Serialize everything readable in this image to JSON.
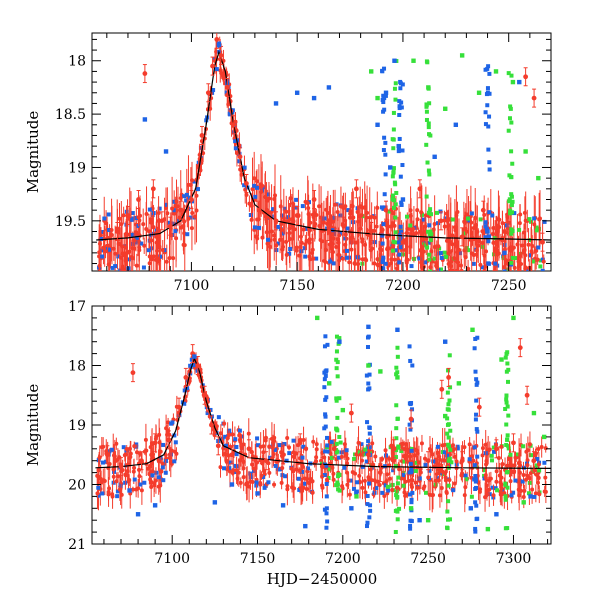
{
  "chart_data": [
    {
      "type": "scatter",
      "title": "",
      "xlabel": "",
      "ylabel": "Magnitude",
      "xlim": [
        7053,
        7270
      ],
      "ylim": [
        19.97,
        17.74
      ],
      "y_inverted": true,
      "x_ticks": [
        7100,
        7150,
        7200,
        7250
      ],
      "x_tick_labels": [
        "7100",
        "7150",
        "7200",
        "7250"
      ],
      "y_ticks": [
        18,
        18.5,
        19,
        19.5
      ],
      "y_tick_labels": [
        "18",
        "18.5",
        "19",
        "19.5"
      ],
      "model_curve": {
        "name": "fit",
        "color": "#000000",
        "points": [
          [
            7055,
            19.68
          ],
          [
            7070,
            19.66
          ],
          [
            7085,
            19.62
          ],
          [
            7095,
            19.5
          ],
          [
            7102,
            19.2
          ],
          [
            7107,
            18.6
          ],
          [
            7111,
            18.05
          ],
          [
            7113,
            17.92
          ],
          [
            7116,
            18.1
          ],
          [
            7120,
            18.6
          ],
          [
            7125,
            19.1
          ],
          [
            7130,
            19.35
          ],
          [
            7140,
            19.5
          ],
          [
            7160,
            19.58
          ],
          [
            7190,
            19.63
          ],
          [
            7220,
            19.66
          ],
          [
            7250,
            19.67
          ],
          [
            7270,
            19.68
          ]
        ]
      },
      "series": [
        {
          "name": "red",
          "color": "#f43c2c",
          "errorbars": true,
          "points": [
            [
              7065,
              19.6
            ],
            [
              7070,
              19.45
            ],
            [
              7075,
              19.3
            ],
            [
              7078,
              18.12
            ],
            [
              7082,
              19.2
            ],
            [
              7086,
              19.5
            ],
            [
              7090,
              19.55
            ],
            [
              7095,
              19.4
            ],
            [
              7100,
              19.3
            ],
            [
              7105,
              18.7
            ],
            [
              7108,
              18.3
            ],
            [
              7110,
              18.05
            ],
            [
              7112,
              17.8
            ],
            [
              7114,
              17.95
            ],
            [
              7117,
              18.25
            ],
            [
              7120,
              18.6
            ],
            [
              7123,
              18.9
            ],
            [
              7126,
              19.15
            ],
            [
              7132,
              19.4
            ],
            [
              7140,
              19.5
            ],
            [
              7150,
              19.45
            ],
            [
              7158,
              19.3
            ],
            [
              7165,
              19.6
            ],
            [
              7172,
              19.55
            ],
            [
              7178,
              19.2
            ],
            [
              7185,
              19.6
            ],
            [
              7192,
              19.4
            ],
            [
              7200,
              19.7
            ],
            [
              7208,
              19.2
            ],
            [
              7218,
              19.5
            ],
            [
              7228,
              19.65
            ],
            [
              7238,
              19.4
            ],
            [
              7248,
              19.6
            ],
            [
              7258,
              18.15
            ],
            [
              7262,
              18.35
            ],
            [
              7266,
              19.7
            ]
          ]
        },
        {
          "name": "blue",
          "color": "#1e64e6",
          "errorbars": false,
          "points": [
            [
              7078,
              18.55
            ],
            [
              7088,
              18.85
            ],
            [
              7113,
              17.85
            ],
            [
              7140,
              18.4
            ],
            [
              7150,
              18.3
            ],
            [
              7158,
              18.35
            ],
            [
              7165,
              18.25
            ],
            [
              7188,
              18.6
            ],
            [
              7192,
              18.3
            ],
            [
              7194,
              19.0
            ],
            [
              7196,
              18.0
            ],
            [
              7198,
              18.8
            ],
            [
              7200,
              19.3
            ],
            [
              7215,
              18.9
            ],
            [
              7225,
              18.6
            ],
            [
              7240,
              19.6
            ],
            [
              7248,
              19.8
            ],
            [
              7255,
              18.2
            ]
          ]
        },
        {
          "name": "green",
          "color": "#36e03a",
          "errorbars": false,
          "points": [
            [
              7185,
              18.1
            ],
            [
              7188,
              18.35
            ],
            [
              7205,
              18.0
            ],
            [
              7212,
              18.25
            ],
            [
              7220,
              18.45
            ],
            [
              7228,
              17.95
            ],
            [
              7236,
              18.3
            ],
            [
              7244,
              18.1
            ],
            [
              7252,
              18.2
            ],
            [
              7258,
              18.85
            ],
            [
              7264,
              19.1
            ]
          ]
        }
      ]
    },
    {
      "type": "scatter",
      "title": "",
      "xlabel": "HJD−2450000",
      "ylabel": "Magnitude",
      "xlim": [
        7053,
        7322
      ],
      "ylim": [
        21,
        17
      ],
      "y_inverted": true,
      "x_ticks": [
        7100,
        7150,
        7200,
        7250,
        7300
      ],
      "x_tick_labels": [
        "7100",
        "7150",
        "7200",
        "7250",
        "7300"
      ],
      "y_ticks": [
        17,
        18,
        19,
        20,
        21
      ],
      "y_tick_labels": [
        "17",
        "18",
        "19",
        "20",
        "21"
      ],
      "model_curve": {
        "name": "fit",
        "color": "#000000",
        "points": [
          [
            7055,
            19.72
          ],
          [
            7070,
            19.7
          ],
          [
            7085,
            19.65
          ],
          [
            7095,
            19.5
          ],
          [
            7102,
            19.1
          ],
          [
            7107,
            18.55
          ],
          [
            7111,
            18.05
          ],
          [
            7113,
            17.88
          ],
          [
            7116,
            18.1
          ],
          [
            7120,
            18.6
          ],
          [
            7125,
            19.05
          ],
          [
            7130,
            19.35
          ],
          [
            7145,
            19.55
          ],
          [
            7180,
            19.65
          ],
          [
            7220,
            19.7
          ],
          [
            7270,
            19.72
          ],
          [
            7322,
            19.73
          ]
        ]
      },
      "series": [
        {
          "name": "red",
          "color": "#f43c2c",
          "errorbars": true,
          "points": [
            [
              7062,
              19.5
            ],
            [
              7070,
              19.7
            ],
            [
              7077,
              18.12
            ],
            [
              7082,
              19.6
            ],
            [
              7090,
              19.3
            ],
            [
              7098,
              19.25
            ],
            [
              7104,
              18.7
            ],
            [
              7108,
              18.2
            ],
            [
              7112,
              17.8
            ],
            [
              7115,
              18.0
            ],
            [
              7119,
              18.5
            ],
            [
              7123,
              19.0
            ],
            [
              7127,
              19.35
            ],
            [
              7135,
              19.5
            ],
            [
              7145,
              19.4
            ],
            [
              7155,
              19.6
            ],
            [
              7165,
              19.5
            ],
            [
              7175,
              19.3
            ],
            [
              7188,
              19.7
            ],
            [
              7195,
              19.4
            ],
            [
              7205,
              18.8
            ],
            [
              7215,
              19.5
            ],
            [
              7222,
              19.8
            ],
            [
              7230,
              19.4
            ],
            [
              7240,
              18.9
            ],
            [
              7250,
              19.6
            ],
            [
              7258,
              18.4
            ],
            [
              7262,
              18.2
            ],
            [
              7270,
              19.6
            ],
            [
              7280,
              18.7
            ],
            [
              7290,
              19.4
            ],
            [
              7300,
              19.3
            ],
            [
              7304,
              17.7
            ],
            [
              7308,
              18.5
            ],
            [
              7312,
              19.6
            ]
          ]
        },
        {
          "name": "blue",
          "color": "#1e64e6",
          "errorbars": false,
          "points": [
            [
              7075,
              20.1
            ],
            [
              7080,
              20.5
            ],
            [
              7090,
              20.35
            ],
            [
              7113,
              17.85
            ],
            [
              7125,
              20.3
            ],
            [
              7135,
              20.0
            ],
            [
              7150,
              20.15
            ],
            [
              7165,
              20.35
            ],
            [
              7178,
              20.7
            ],
            [
              7190,
              18.1
            ],
            [
              7198,
              17.6
            ],
            [
              7205,
              20.4
            ],
            [
              7215,
              17.35
            ],
            [
              7232,
              17.4
            ],
            [
              7245,
              20.6
            ],
            [
              7260,
              17.6
            ],
            [
              7275,
              20.4
            ],
            [
              7290,
              20.5
            ],
            [
              7310,
              20.2
            ]
          ]
        },
        {
          "name": "green",
          "color": "#36e03a",
          "errorbars": false,
          "points": [
            [
              7185,
              17.2
            ],
            [
              7192,
              18.3
            ],
            [
              7200,
              18.75
            ],
            [
              7208,
              20.2
            ],
            [
              7215,
              18.0
            ],
            [
              7222,
              18.1
            ],
            [
              7232,
              18.2
            ],
            [
              7240,
              20.4
            ],
            [
              7250,
              20.6
            ],
            [
              7260,
              18.85
            ],
            [
              7268,
              18.3
            ],
            [
              7276,
              17.4
            ],
            [
              7285,
              20.75
            ],
            [
              7293,
              17.9
            ],
            [
              7300,
              17.2
            ],
            [
              7306,
              20.3
            ],
            [
              7312,
              18.8
            ],
            [
              7318,
              19.2
            ]
          ]
        }
      ]
    }
  ]
}
